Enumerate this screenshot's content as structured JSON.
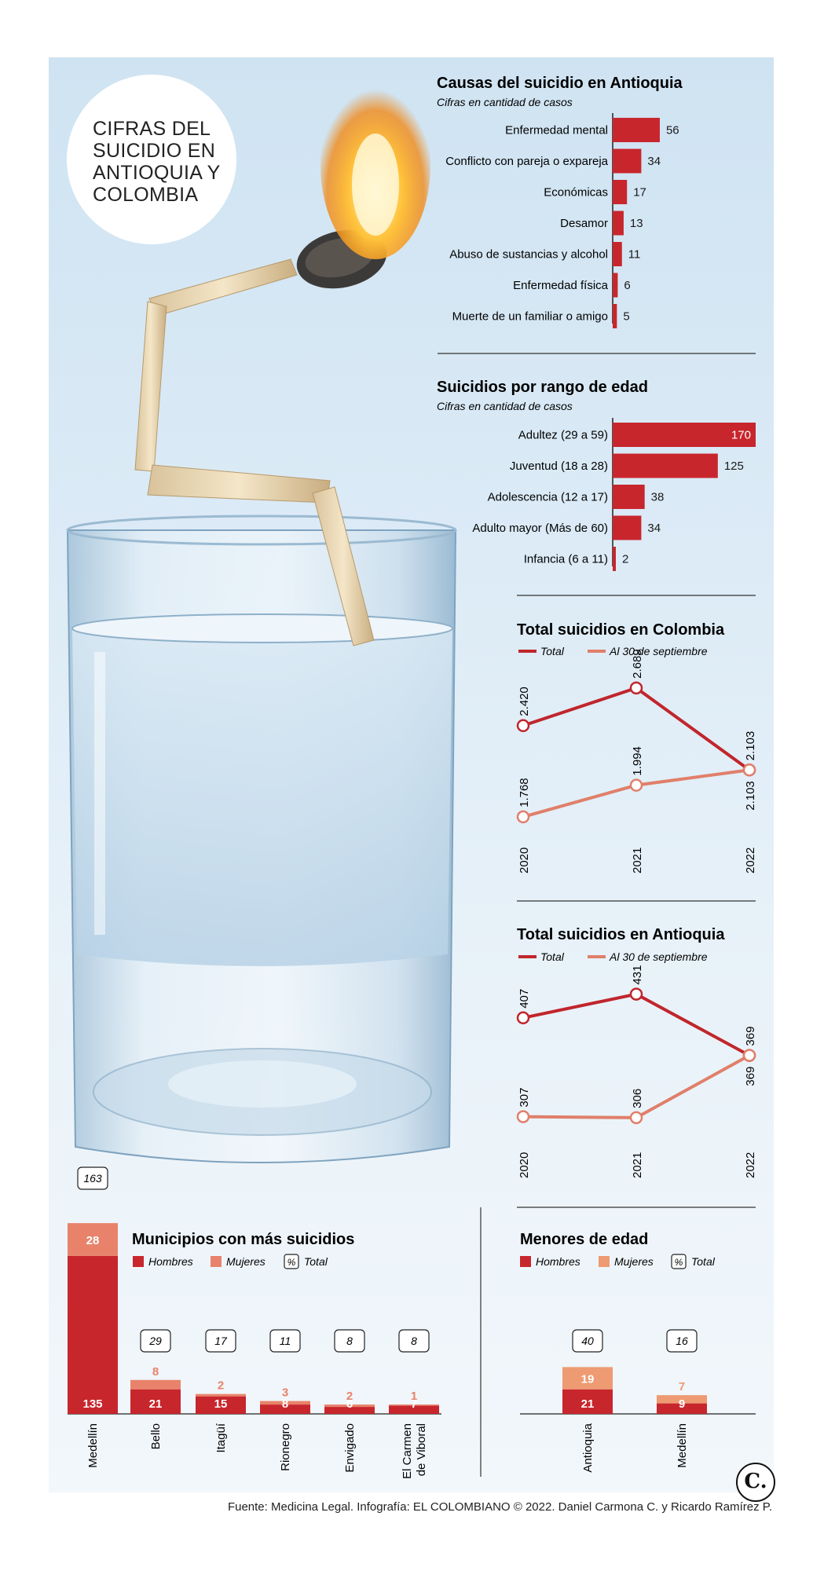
{
  "intro_title": "CIFRAS DEL SUICIDIO EN ANTIOQUIA Y COLOMBIA",
  "source": "Fuente: Medicina Legal. Infografía: EL COLOMBIANO © 2022. Daniel Carmona C. y Ricardo Ramírez P.",
  "logo_text": "C.",
  "colors": {
    "hombres": "#c8262d",
    "mujeres": "#e8826a",
    "mujeres_menores": "#ee9a72",
    "total_line": "#c0262c",
    "sept_line": "#e07f6a",
    "sky": "#cfe3f2"
  },
  "chart_data": [
    {
      "type": "bar",
      "orientation": "horizontal",
      "title": "Causas del suicidio en Antioquia",
      "subtitle": "Cifras en cantidad de casos",
      "categories": [
        "Enfermedad mental",
        "Conflicto con pareja o expareja",
        "Económicas",
        "Desamor",
        "Abuso de sustancias y alcohol",
        "Enfermedad física",
        "Muerte de un familiar o amigo"
      ],
      "values": [
        56,
        34,
        17,
        13,
        11,
        6,
        5
      ]
    },
    {
      "type": "bar",
      "orientation": "horizontal",
      "title": "Suicidios por rango de edad",
      "subtitle": "Cifras en cantidad de casos",
      "categories": [
        "Adultez (29 a 59)",
        "Juventud (18 a 28)",
        "Adolescencia (12 a 17)",
        "Adulto mayor (Más de 60)",
        "Infancia (6 a 11)"
      ],
      "values": [
        170,
        125,
        38,
        34,
        2
      ]
    },
    {
      "type": "line",
      "title": "Total suicidios en Colombia",
      "x": [
        "2020",
        "2021",
        "2022"
      ],
      "series": [
        {
          "name": "Total",
          "values": [
            2420,
            2689,
            2103
          ],
          "labels": [
            "2.420",
            "2.689",
            "2.103"
          ]
        },
        {
          "name": "Al 30 de septiembre",
          "values": [
            1768,
            1994,
            2103
          ],
          "labels": [
            "1.768",
            "1.994",
            "2.103"
          ]
        }
      ],
      "ylim": [
        1700,
        2750
      ]
    },
    {
      "type": "line",
      "title": "Total suicidios en Antioquia",
      "x": [
        "2020",
        "2021",
        "2022"
      ],
      "series": [
        {
          "name": "Total",
          "values": [
            407,
            431,
            369
          ],
          "labels": [
            "407",
            "431",
            "369"
          ]
        },
        {
          "name": "Al 30 de septiembre",
          "values": [
            307,
            306,
            369
          ],
          "labels": [
            "307",
            "306",
            "369"
          ]
        }
      ],
      "ylim": [
        290,
        445
      ]
    },
    {
      "type": "bar",
      "stacked": true,
      "title": "Municipios con más suicidios",
      "legend": [
        "Hombres",
        "Mujeres",
        "Total"
      ],
      "legend_total_symbol": "%",
      "categories": [
        "Medellín",
        "Bello",
        "Itagüí",
        "Rionegro",
        "Envigado",
        "El Carmen de Viboral"
      ],
      "series": [
        {
          "name": "Hombres",
          "values": [
            135,
            21,
            15,
            8,
            6,
            7
          ]
        },
        {
          "name": "Mujeres",
          "values": [
            28,
            8,
            2,
            3,
            2,
            1
          ]
        }
      ],
      "totals": [
        163,
        29,
        17,
        11,
        8,
        8
      ]
    },
    {
      "type": "bar",
      "stacked": true,
      "title": "Menores de edad",
      "legend": [
        "Hombres",
        "Mujeres",
        "Total"
      ],
      "legend_total_symbol": "%",
      "categories": [
        "Antioquia",
        "Medellín"
      ],
      "series": [
        {
          "name": "Hombres",
          "values": [
            21,
            9
          ]
        },
        {
          "name": "Mujeres",
          "values": [
            19,
            7
          ]
        }
      ],
      "totals": [
        40,
        16
      ]
    }
  ]
}
